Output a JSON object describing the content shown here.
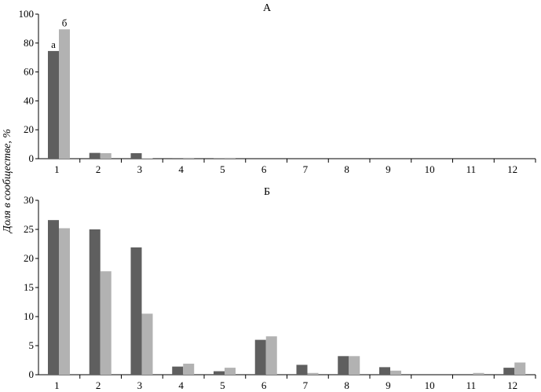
{
  "shared_ylabel": "Доля в сообществе, %",
  "series_colors": {
    "a": "#5f5f5f",
    "b": "#b2b2b2"
  },
  "chart_data": [
    {
      "type": "bar",
      "title": "А",
      "categories": [
        "1",
        "2",
        "3",
        "4",
        "5",
        "6",
        "7",
        "8",
        "9",
        "10",
        "11",
        "12"
      ],
      "series": [
        {
          "name": "а",
          "values": [
            74.5,
            4.0,
            3.8,
            0.4,
            0.2,
            0,
            0,
            0,
            0,
            0,
            0,
            0
          ]
        },
        {
          "name": "б",
          "values": [
            89.5,
            3.8,
            0.3,
            0.6,
            0.6,
            0,
            0,
            0,
            0,
            0,
            0,
            0
          ]
        }
      ],
      "ylim": [
        0,
        100
      ],
      "yticks": [
        "0",
        "20",
        "40",
        "60",
        "80",
        "100"
      ],
      "grid": false
    },
    {
      "type": "bar",
      "title": "Б",
      "categories": [
        "1",
        "2",
        "3",
        "4",
        "5",
        "6",
        "7",
        "8",
        "9",
        "10",
        "11",
        "12"
      ],
      "series": [
        {
          "values": [
            26.6,
            25.0,
            21.9,
            1.4,
            0.6,
            6.0,
            1.7,
            3.2,
            1.3,
            0,
            0,
            1.2
          ]
        },
        {
          "values": [
            25.2,
            17.8,
            10.5,
            1.9,
            1.2,
            6.6,
            0.3,
            3.2,
            0.7,
            0,
            0.3,
            2.1
          ]
        }
      ],
      "ylim": [
        0,
        30
      ],
      "yticks": [
        "0",
        "5",
        "10",
        "15",
        "20",
        "25",
        "30"
      ],
      "grid": false
    }
  ]
}
